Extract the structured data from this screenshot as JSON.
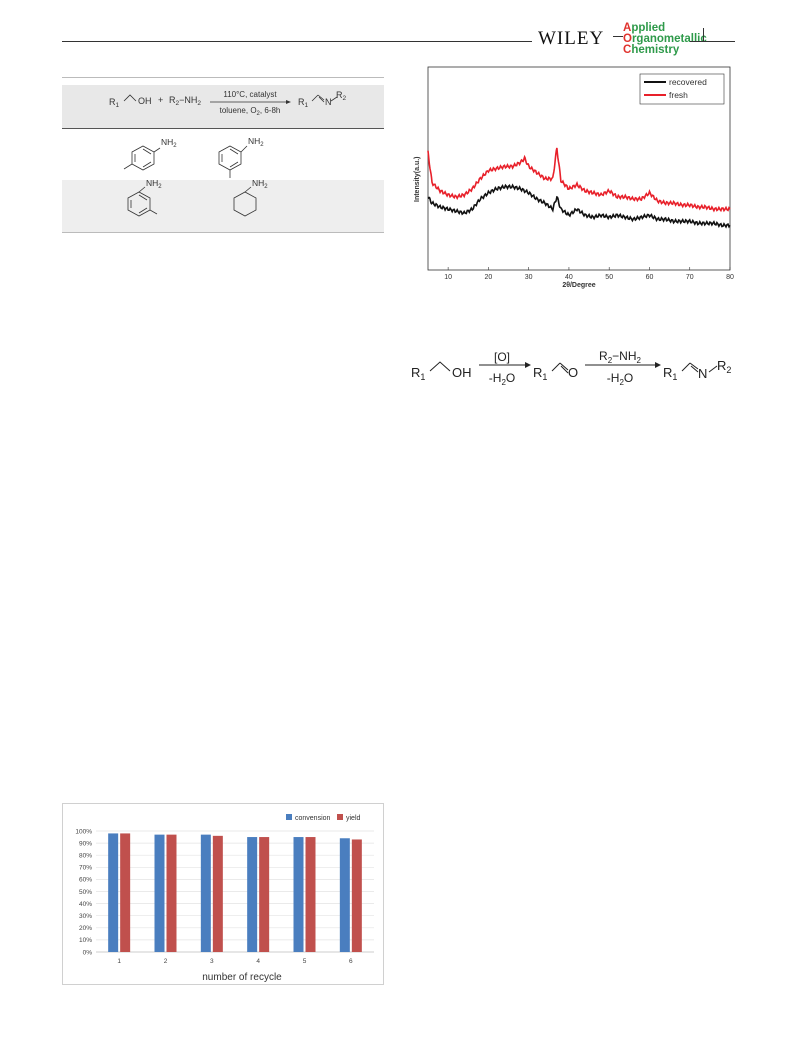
{
  "header": {
    "publisher": "WILEY",
    "journal_line1_cap": "A",
    "journal_line1_rest": "pplied",
    "journal_line2_cap": "O",
    "journal_line2_rest": "rganometallic",
    "journal_line3_cap": "C",
    "journal_line3_rest": "hemistry"
  },
  "reaction_table": {
    "scheme": {
      "reactant1_r": "R",
      "reactant1_sub": "1",
      "reactant1_group": "OH",
      "plus": "+",
      "reactant2_r": "R",
      "reactant2_sub": "2",
      "reactant2_group": "−NH",
      "reactant2_group_sub": "2",
      "condition_top": "110°C, catalyst",
      "condition_bottom": "toluene, O",
      "condition_bottom_sub": "2",
      "condition_bottom_tail": ", 6-8h",
      "product_r1": "R",
      "product_r1_sub": "1",
      "product_n": "N",
      "product_r2": "R",
      "product_r2_sub": "2"
    },
    "amine_labels": [
      "NH",
      "NH",
      "NH",
      "NH"
    ],
    "amine_label_sub": "2"
  },
  "xrd_chart": {
    "chart_data": {
      "type": "line",
      "xlabel": "2θ/Degree",
      "ylabel": "Intensity(a.u.)",
      "xlim": [
        5,
        80
      ],
      "xticks": [
        10,
        20,
        30,
        40,
        50,
        60,
        70,
        80
      ],
      "legend_position": "top-right",
      "series": [
        {
          "name": "recovered",
          "color": "#111111",
          "x": [
            5,
            6,
            8,
            10,
            12,
            14,
            16,
            18,
            20,
            22,
            24,
            26,
            28,
            30,
            32,
            34,
            36,
            37,
            38,
            40,
            42,
            44,
            46,
            48,
            50,
            52,
            54,
            56,
            58,
            60,
            62,
            64,
            66,
            68,
            70,
            72,
            74,
            76,
            78,
            80
          ],
          "y": [
            0.36,
            0.33,
            0.31,
            0.3,
            0.29,
            0.28,
            0.3,
            0.35,
            0.38,
            0.4,
            0.41,
            0.41,
            0.4,
            0.38,
            0.35,
            0.33,
            0.3,
            0.36,
            0.3,
            0.27,
            0.3,
            0.27,
            0.26,
            0.27,
            0.26,
            0.27,
            0.26,
            0.25,
            0.26,
            0.27,
            0.25,
            0.25,
            0.24,
            0.24,
            0.24,
            0.23,
            0.23,
            0.23,
            0.22,
            0.22
          ]
        },
        {
          "name": "fresh",
          "color": "#e8202a",
          "x": [
            5,
            6,
            8,
            10,
            12,
            14,
            16,
            18,
            20,
            22,
            24,
            26,
            28,
            29,
            30,
            32,
            34,
            36,
            37,
            38,
            40,
            42,
            44,
            46,
            48,
            50,
            52,
            54,
            56,
            58,
            60,
            62,
            64,
            66,
            68,
            70,
            72,
            74,
            76,
            78,
            80
          ],
          "y": [
            0.58,
            0.43,
            0.39,
            0.37,
            0.36,
            0.37,
            0.4,
            0.45,
            0.49,
            0.5,
            0.51,
            0.51,
            0.53,
            0.55,
            0.51,
            0.48,
            0.45,
            0.45,
            0.6,
            0.44,
            0.4,
            0.42,
            0.39,
            0.38,
            0.37,
            0.39,
            0.36,
            0.36,
            0.35,
            0.35,
            0.38,
            0.34,
            0.33,
            0.33,
            0.32,
            0.32,
            0.31,
            0.31,
            0.3,
            0.3,
            0.3
          ]
        }
      ]
    }
  },
  "mechanism": {
    "r1": "R",
    "r1_sub": "1",
    "oh": "OH",
    "step1_top": "[O]",
    "step1_bottom": "-H",
    "step1_bottom_sub": "2",
    "step1_bottom_tail": "O",
    "r1b": "R",
    "r1b_sub": "1",
    "carbonyl_o": "O",
    "step2_top_r": "R",
    "step2_top_sub": "2",
    "step2_top_tail": "−NH",
    "step2_top_tail_sub": "2",
    "step2_bottom": "-H",
    "step2_bottom_sub": "2",
    "step2_bottom_tail": "O",
    "r1c": "R",
    "r1c_sub": "1",
    "n": "N",
    "r2": "R",
    "r2_sub": "2"
  },
  "recycle_chart": {
    "chart_data": {
      "type": "bar",
      "xlabel": "number of recycle",
      "categories": [
        "1",
        "2",
        "3",
        "4",
        "5",
        "6"
      ],
      "ylim": [
        0,
        100
      ],
      "yticks": [
        "0%",
        "10%",
        "20%",
        "30%",
        "40%",
        "50%",
        "60%",
        "70%",
        "80%",
        "90%",
        "100%"
      ],
      "legend_position": "top-right",
      "series": [
        {
          "name": "convension",
          "color": "#4a7ebf",
          "values": [
            98,
            97,
            97,
            95,
            95,
            94
          ]
        },
        {
          "name": "yield",
          "color": "#c0504d",
          "values": [
            98,
            97,
            96,
            95,
            95,
            93
          ]
        }
      ]
    }
  }
}
